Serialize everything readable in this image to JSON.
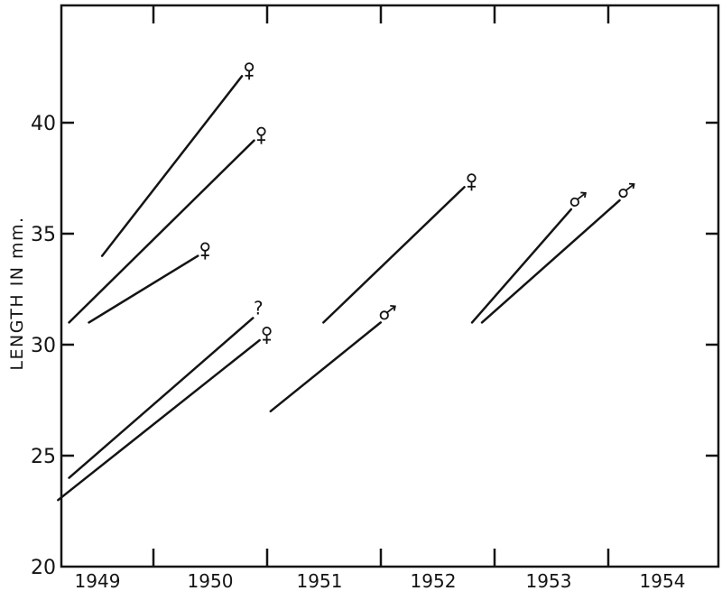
{
  "chart_data": {
    "type": "line",
    "title": "",
    "xlabel": "",
    "ylabel": "LENGTH IN mm.",
    "x_tick_labels": [
      "1949",
      "1950",
      "1951",
      "1952",
      "1953",
      "1954"
    ],
    "y_tick_labels": [
      "20",
      "25",
      "30",
      "35",
      "40"
    ],
    "y_ticks": [
      20,
      25,
      30,
      35,
      40
    ],
    "ylim": [
      20,
      45
    ],
    "grid": false,
    "colors": {
      "ink": "#141414",
      "background": "#ffffff"
    },
    "series": [
      {
        "symbol": "♀",
        "x": [
          1948.77,
          1950.04
        ],
        "y": [
          34.0,
          42.1
        ]
      },
      {
        "symbol": "♀",
        "x": [
          1948.47,
          1950.15
        ],
        "y": [
          31.0,
          39.2
        ]
      },
      {
        "symbol": "♀",
        "x": [
          1948.65,
          1949.64
        ],
        "y": [
          31.0,
          34.0
        ]
      },
      {
        "symbol": "?",
        "x": [
          1948.47,
          1950.14
        ],
        "y": [
          24.0,
          31.2
        ]
      },
      {
        "symbol": "♀",
        "x": [
          1948.37,
          1950.2
        ],
        "y": [
          23.0,
          30.2
        ]
      },
      {
        "symbol": "♂",
        "x": [
          1950.3,
          1951.3
        ],
        "y": [
          27.0,
          31.0
        ]
      },
      {
        "symbol": "♀",
        "x": [
          1950.78,
          1952.06
        ],
        "y": [
          31.0,
          37.1
        ]
      },
      {
        "symbol": "♂",
        "x": [
          1952.13,
          1953.03
        ],
        "y": [
          31.0,
          36.1
        ]
      },
      {
        "symbol": "♂",
        "x": [
          1952.22,
          1953.47
        ],
        "y": [
          31.0,
          36.5
        ]
      }
    ]
  }
}
